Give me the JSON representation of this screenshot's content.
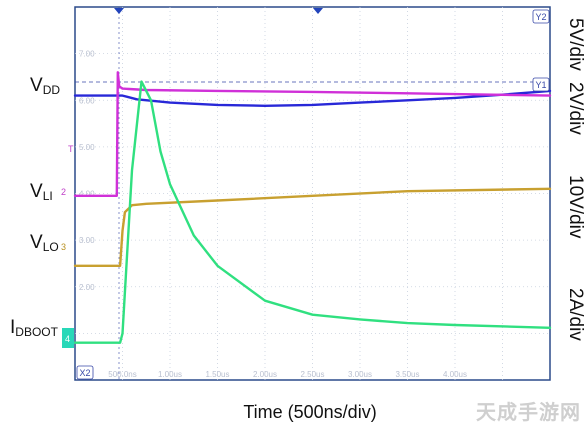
{
  "chart_data": {
    "type": "line",
    "xlabel": "Time (500ns/div)",
    "x_unit_per_div": "500ns",
    "x_divisions": 10,
    "y_divisions": 8,
    "grid": true,
    "x_ticks": [
      "500.0ns",
      "1.00us",
      "1.50us",
      "2.00us",
      "2.50us",
      "3.00us",
      "3.50us",
      "4.00us"
    ],
    "y_ticks": [
      "7.00",
      "6.00",
      "5.00",
      "4.00",
      "3.00",
      "2.00"
    ],
    "cursors": [
      "Y2",
      "Y1",
      "X2"
    ],
    "channel_markers": [
      "T",
      "2",
      "3",
      "4"
    ],
    "series": [
      {
        "name": "V_DD",
        "label_main": "V",
        "label_sub": "DD",
        "scale": "5V/div",
        "color": "#2828d8",
        "x": [
          0,
          0.9,
          1.0,
          1.3,
          2.0,
          3.0,
          4.0,
          5.0,
          6.0,
          7.0,
          8.0,
          9.0,
          10.0
        ],
        "y": [
          6.1,
          6.1,
          6.1,
          6.02,
          5.95,
          5.9,
          5.88,
          5.9,
          5.95,
          6.0,
          6.05,
          6.12,
          6.2
        ]
      },
      {
        "name": "V_LI",
        "label_main": "V",
        "label_sub": "LI",
        "scale": "2V/div",
        "color": "#d030d8",
        "x": [
          0,
          0.88,
          0.9,
          0.93,
          1.0,
          1.5,
          3.0,
          5.0,
          7.0,
          10.0
        ],
        "y": [
          3.95,
          3.95,
          6.6,
          6.3,
          6.25,
          6.22,
          6.2,
          6.18,
          6.15,
          6.1
        ]
      },
      {
        "name": "V_LO",
        "label_main": "V",
        "label_sub": "LO",
        "scale": "10V/div",
        "color": "#c8a030",
        "x": [
          0,
          0.95,
          1.0,
          1.05,
          1.2,
          1.5,
          3.0,
          5.0,
          7.0,
          10.0
        ],
        "y": [
          2.45,
          2.45,
          3.2,
          3.6,
          3.75,
          3.78,
          3.85,
          3.95,
          4.05,
          4.1
        ]
      },
      {
        "name": "I_DBOOT",
        "label_main": "I",
        "label_sub": "DBOOT",
        "scale": "2A/div",
        "color": "#30e080",
        "x": [
          0,
          0.95,
          1.0,
          1.2,
          1.4,
          1.6,
          1.8,
          2.0,
          2.5,
          3.0,
          4.0,
          5.0,
          6.0,
          7.0,
          8.0,
          10.0
        ],
        "y": [
          0.8,
          0.8,
          1.0,
          4.5,
          6.4,
          6.0,
          4.9,
          4.2,
          3.1,
          2.45,
          1.7,
          1.4,
          1.3,
          1.22,
          1.18,
          1.12
        ]
      }
    ]
  },
  "labels": {
    "vdd": {
      "main": "V",
      "sub": "DD"
    },
    "vli": {
      "main": "V",
      "sub": "LI"
    },
    "vlo": {
      "main": "V",
      "sub": "LO"
    },
    "idboot": {
      "main": "I",
      "sub": "DBOOT"
    }
  },
  "right_scales": {
    "vdd": "5V/div",
    "vli": "2V/div",
    "vlo": "10V/div",
    "idboot": "2A/div"
  },
  "watermark": "天成手游网"
}
